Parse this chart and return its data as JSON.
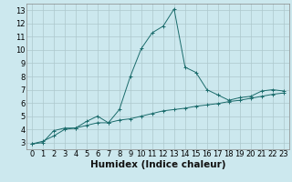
{
  "xlabel": "Humidex (Indice chaleur)",
  "background_color": "#cce8ee",
  "grid_color": "#adc8cc",
  "line_color": "#1a6b6b",
  "xlim": [
    -0.5,
    23.5
  ],
  "ylim": [
    2.5,
    13.5
  ],
  "xticks": [
    0,
    1,
    2,
    3,
    4,
    5,
    6,
    7,
    8,
    9,
    10,
    11,
    12,
    13,
    14,
    15,
    16,
    17,
    18,
    19,
    20,
    21,
    22,
    23
  ],
  "yticks": [
    3,
    4,
    5,
    6,
    7,
    8,
    9,
    10,
    11,
    12,
    13
  ],
  "line1_x": [
    0,
    1,
    2,
    3,
    4,
    5,
    6,
    7,
    8,
    9,
    10,
    11,
    12,
    13,
    14,
    15,
    16,
    17,
    18,
    19,
    20,
    21,
    22,
    23
  ],
  "line1_y": [
    2.9,
    3.0,
    3.9,
    4.1,
    4.1,
    4.6,
    5.0,
    4.5,
    5.5,
    8.0,
    10.1,
    11.3,
    11.8,
    13.1,
    8.7,
    8.3,
    7.0,
    6.6,
    6.2,
    6.4,
    6.5,
    6.9,
    7.0,
    6.9
  ],
  "line2_x": [
    0,
    1,
    2,
    3,
    4,
    5,
    6,
    7,
    8,
    9,
    10,
    11,
    12,
    13,
    14,
    15,
    16,
    17,
    18,
    19,
    20,
    21,
    22,
    23
  ],
  "line2_y": [
    2.9,
    3.1,
    3.5,
    4.0,
    4.1,
    4.3,
    4.5,
    4.5,
    4.7,
    4.8,
    5.0,
    5.2,
    5.4,
    5.5,
    5.6,
    5.75,
    5.85,
    5.95,
    6.1,
    6.2,
    6.35,
    6.5,
    6.65,
    6.75
  ],
  "xlabel_fontsize": 7.5,
  "tick_fontsize": 6
}
